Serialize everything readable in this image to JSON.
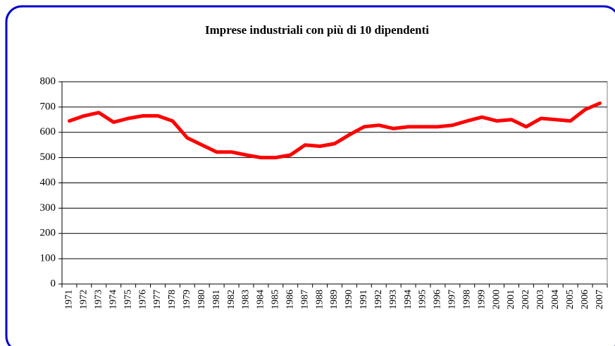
{
  "chart_data": {
    "type": "line",
    "title": "Imprese industriali con più di 10 dipendenti",
    "categories": [
      "1971",
      "1972",
      "1973",
      "1974",
      "1975",
      "1976",
      "1977",
      "1978",
      "1979",
      "1980",
      "1981",
      "1982",
      "1983",
      "1984",
      "1985",
      "1986",
      "1987",
      "1988",
      "1989",
      "1990",
      "1991",
      "1992",
      "1993",
      "1994",
      "1995",
      "1996",
      "1997",
      "1998",
      "1999",
      "2000",
      "2001",
      "2002",
      "2003",
      "2004",
      "2005",
      "2006",
      "2007"
    ],
    "values": [
      645,
      665,
      678,
      640,
      655,
      665,
      665,
      645,
      578,
      550,
      522,
      522,
      510,
      500,
      500,
      510,
      550,
      545,
      555,
      590,
      622,
      628,
      615,
      622,
      622,
      622,
      628,
      645,
      660,
      645,
      650,
      622,
      655,
      650,
      645,
      690,
      715
    ],
    "color": "#ff0000",
    "ylim": [
      0,
      800
    ],
    "yticks": [
      0,
      100,
      200,
      300,
      400,
      500,
      600,
      700,
      800
    ],
    "grid": true
  }
}
